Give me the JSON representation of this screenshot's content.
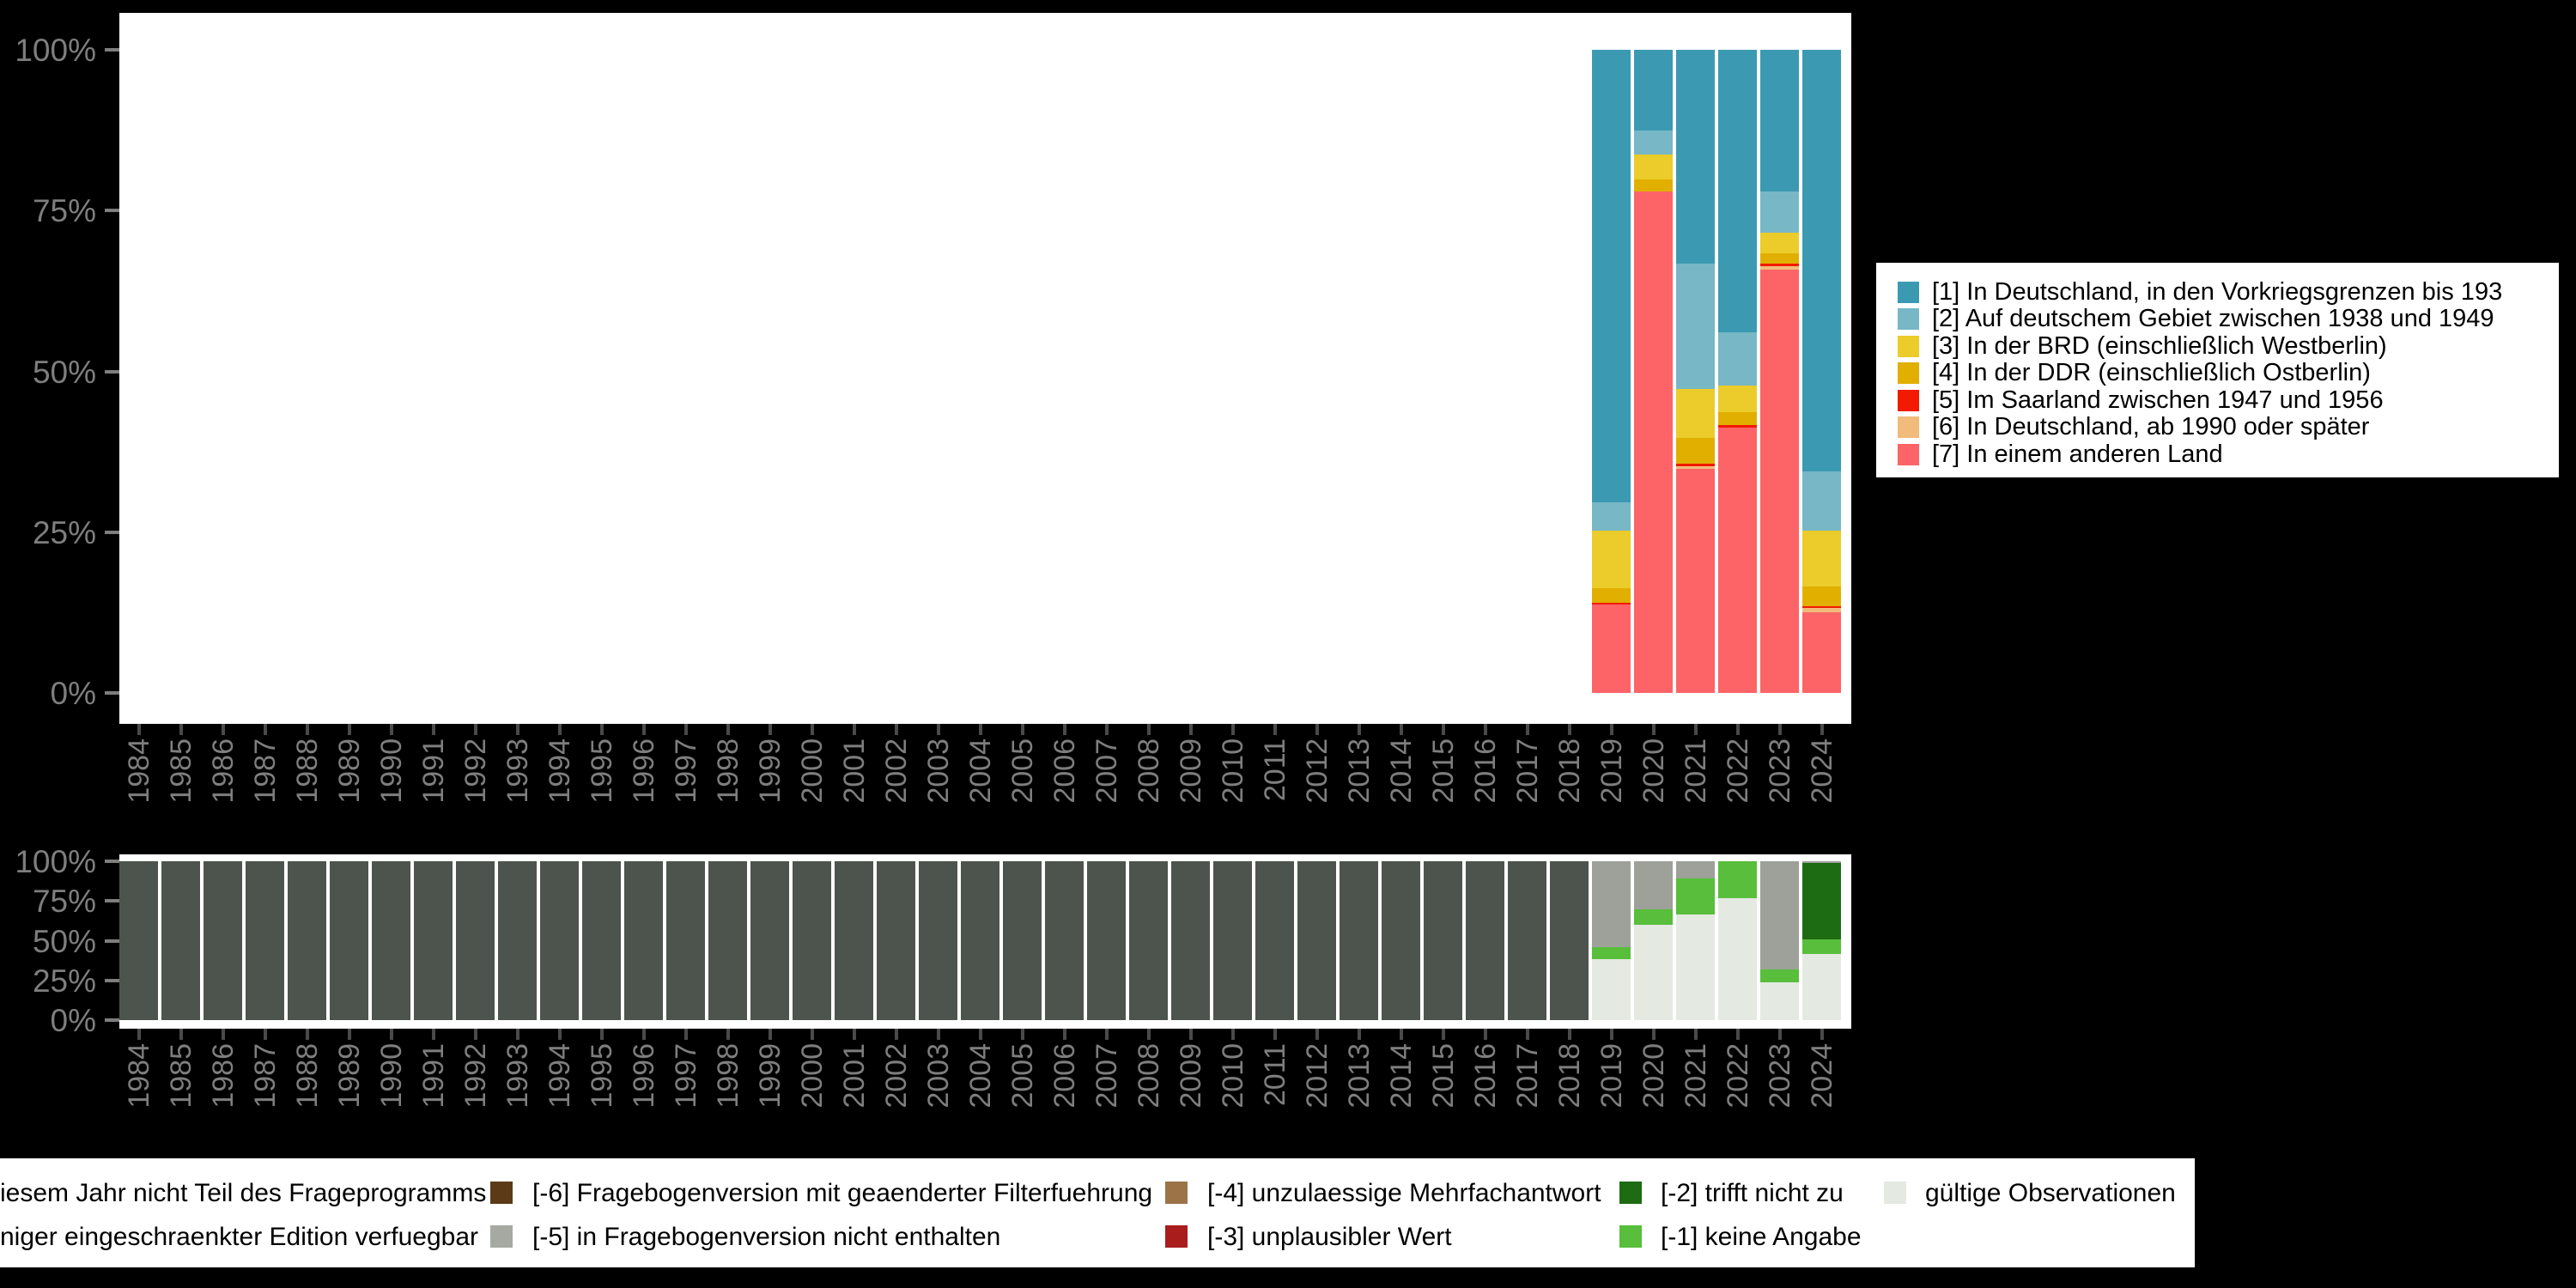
{
  "accent_colors": {
    "background": "#000000",
    "panel": "#FFFFFF",
    "axis_label_gray": "#7E7E7E",
    "axis_tick_gray": "#4A4A4A"
  },
  "chart_data": [
    {
      "type": "bar",
      "stacked": true,
      "orientation": "vertical",
      "title": "",
      "xlabel": "",
      "ylabel": "",
      "categories": [
        1984,
        1985,
        1986,
        1987,
        1988,
        1989,
        1990,
        1991,
        1992,
        1993,
        1994,
        1995,
        1996,
        1997,
        1998,
        1999,
        2000,
        2001,
        2002,
        2003,
        2004,
        2005,
        2006,
        2007,
        2008,
        2009,
        2010,
        2011,
        2012,
        2013,
        2014,
        2015,
        2016,
        2017,
        2018,
        2019,
        2020,
        2021,
        2022,
        2023,
        2024
      ],
      "ytick_labels": [
        "0%",
        "25%",
        "50%",
        "75%",
        "100%"
      ],
      "ylim": [
        0,
        100
      ],
      "grid": false,
      "legend_position": "right",
      "series": [
        {
          "key": "1",
          "label": "[1] In Deutschland, in den Vorkriegsgrenzen bis 193",
          "color": "#3B9AB2",
          "values": {
            "2019": 70.4,
            "2020": 12.5,
            "2021": 33.3,
            "2022": 43.9,
            "2023": 22.0,
            "2024": 65.5
          }
        },
        {
          "key": "2",
          "label": "[2] Auf deutschem Gebiet zwischen 1938 und 1949",
          "color": "#78B7C5",
          "values": {
            "2019": 4.4,
            "2020": 3.8,
            "2021": 19.5,
            "2022": 8.3,
            "2023": 6.4,
            "2024": 9.3
          }
        },
        {
          "key": "3",
          "label": "[3] In der BRD (einschließlich Westberlin)",
          "color": "#EBCC2A",
          "values": {
            "2019": 8.9,
            "2020": 3.8,
            "2021": 7.5,
            "2022": 4.2,
            "2023": 3.3,
            "2024": 8.7
          }
        },
        {
          "key": "4",
          "label": "[4] In der DDR (einschließlich Ostberlin)",
          "color": "#E1AF00",
          "values": {
            "2019": 2.3,
            "2020": 1.9,
            "2021": 4.0,
            "2022": 2.0,
            "2023": 1.5,
            "2024": 3.0
          }
        },
        {
          "key": "5",
          "label": "[5] Im Saarland zwischen 1947 und 1956",
          "color": "#F21A00",
          "values": {
            "2019": 0.3,
            "2021": 0.4,
            "2022": 0.4,
            "2023": 0.4,
            "2024": 0.3
          }
        },
        {
          "key": "6",
          "label": "[6] In Deutschland, ab 1990 oder später",
          "color": "#F1BB7B",
          "values": {
            "2021": 0.4,
            "2023": 0.6,
            "2024": 0.6
          }
        },
        {
          "key": "7",
          "label": "[7] In einem anderen Land",
          "color": "#FD6467",
          "values": {
            "2019": 13.7,
            "2020": 78.0,
            "2021": 34.9,
            "2022": 41.2,
            "2023": 65.8,
            "2024": 12.6
          }
        }
      ]
    },
    {
      "type": "bar",
      "stacked": true,
      "orientation": "vertical",
      "title": "",
      "xlabel": "",
      "ylabel": "",
      "categories": [
        1984,
        1985,
        1986,
        1987,
        1988,
        1989,
        1990,
        1991,
        1992,
        1993,
        1994,
        1995,
        1996,
        1997,
        1998,
        1999,
        2000,
        2001,
        2002,
        2003,
        2004,
        2005,
        2006,
        2007,
        2008,
        2009,
        2010,
        2011,
        2012,
        2013,
        2014,
        2015,
        2016,
        2017,
        2018,
        2019,
        2020,
        2021,
        2022,
        2023,
        2024
      ],
      "ytick_labels": [
        "0%",
        "25%",
        "50%",
        "75%",
        "100%"
      ],
      "ylim": [
        0,
        100
      ],
      "grid": false,
      "legend_position": "bottom",
      "series": [
        {
          "key": "nicht-teil-des-frageprogramms",
          "label": "iesem Jahr nicht Teil des Frageprogramms",
          "color": "#4D544D",
          "values": {},
          "values_range": {
            "start": 1984,
            "end": 2018,
            "value": 100
          }
        },
        {
          "key": "-6",
          "label": "[-6] Fragebogenversion mit geaenderter Filterfuehrung",
          "color": "#5C3A18",
          "values": {}
        },
        {
          "key": "-5",
          "label": "[-5] in Fragebogenversion nicht enthalten",
          "color": "#9DA199",
          "values": {
            "2019": 53.9,
            "2020": 30.3,
            "2021": 10.6,
            "2023": 68.3,
            "2024": 0.9
          }
        },
        {
          "key": "-4",
          "label": "[-4] unzulaessige Mehrfachantwort",
          "color": "#9C7347",
          "values": {}
        },
        {
          "key": "-3",
          "label": "[-3] unplausibler Wert",
          "color": "#A91D1D",
          "values": {}
        },
        {
          "key": "-2",
          "label": "[-2] trifft nicht zu",
          "color": "#1D6B12",
          "values": {
            "2024": 48.3
          }
        },
        {
          "key": "-1",
          "label": "[-1] keine Angabe",
          "color": "#58BE3C",
          "values": {
            "2019": 7.6,
            "2020": 9.9,
            "2021": 22.9,
            "2022": 23.2,
            "2023": 8.1,
            "2024": 9.0
          }
        },
        {
          "key": "valid",
          "label": "gültige Observationen",
          "color": "#E4E9E1",
          "values": {
            "2019": 38.5,
            "2020": 59.8,
            "2021": 66.5,
            "2022": 76.8,
            "2023": 23.6,
            "2024": 41.8
          }
        }
      ]
    }
  ],
  "legend_top": {
    "items": [
      {
        "label": "[1] In Deutschland, in den Vorkriegsgrenzen bis 193",
        "color": "#3B9AB2"
      },
      {
        "label": "[2] Auf deutschem Gebiet zwischen 1938 und 1949",
        "color": "#78B7C5"
      },
      {
        "label": "[3] In der BRD (einschließlich Westberlin)",
        "color": "#EBCC2A"
      },
      {
        "label": "[4] In der DDR (einschließlich Ostberlin)",
        "color": "#E1AF00"
      },
      {
        "label": "[5] Im Saarland zwischen 1947 und 1956",
        "color": "#F21A00"
      },
      {
        "label": "[6] In Deutschland, ab 1990 oder später",
        "color": "#F1BB7B"
      },
      {
        "label": "[7] In einem anderen Land",
        "color": "#FD6467"
      }
    ]
  },
  "legend_bottom": {
    "rows": [
      [
        {
          "text": "iesem Jahr nicht Teil des Frageprogramms",
          "swatch": null
        },
        {
          "text": "[-6] Fragebogenversion mit geaenderter Filterfuehrung",
          "swatch": "#5C3A18"
        },
        {
          "text": "[-4] unzulaessige Mehrfachantwort",
          "swatch": "#9C7347"
        },
        {
          "text": "[-2] trifft nicht zu",
          "swatch": "#1D6B12"
        },
        {
          "text": "gültige Observationen",
          "swatch": "#E4E9E1"
        }
      ],
      [
        {
          "text": "niger eingeschraenkter Edition verfuegbar",
          "swatch": null
        },
        {
          "text": "[-5] in Fragebogenversion nicht enthalten",
          "swatch": "#A5A9A1"
        },
        {
          "text": "[-3] unplausibler Wert",
          "swatch": "#A91D1D"
        },
        {
          "text": "[-1] keine Angabe",
          "swatch": "#58BE3C"
        }
      ]
    ]
  }
}
